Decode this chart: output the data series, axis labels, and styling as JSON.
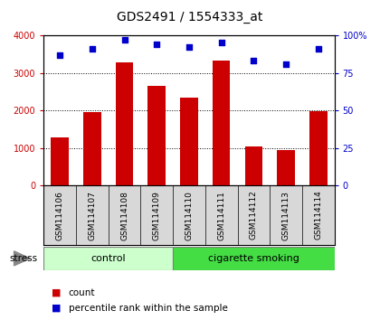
{
  "title": "GDS2491 / 1554333_at",
  "samples": [
    "GSM114106",
    "GSM114107",
    "GSM114108",
    "GSM114109",
    "GSM114110",
    "GSM114111",
    "GSM114112",
    "GSM114113",
    "GSM114114"
  ],
  "counts": [
    1280,
    1950,
    3280,
    2650,
    2330,
    3330,
    1050,
    950,
    1980
  ],
  "percentile_ranks": [
    87,
    91,
    97,
    94,
    92,
    95,
    83,
    81,
    91
  ],
  "groups": [
    {
      "label": "control",
      "start": 0,
      "end": 4,
      "color": "#ccffcc"
    },
    {
      "label": "cigarette smoking",
      "start": 4,
      "end": 9,
      "color": "#44dd44"
    }
  ],
  "bar_color": "#cc0000",
  "dot_color": "#0000cc",
  "ylim_left": [
    0,
    4000
  ],
  "ylim_right": [
    0,
    100
  ],
  "yticks_left": [
    0,
    1000,
    2000,
    3000,
    4000
  ],
  "yticks_right": [
    0,
    25,
    50,
    75,
    100
  ],
  "yticklabels_right": [
    "0",
    "25",
    "50",
    "75",
    "100%"
  ],
  "grid_color": "#000000",
  "stress_label": "stress",
  "legend_count": "count",
  "legend_percentile": "percentile rank within the sample",
  "bg_plot": "#ffffff",
  "bg_label_area": "#d8d8d8"
}
